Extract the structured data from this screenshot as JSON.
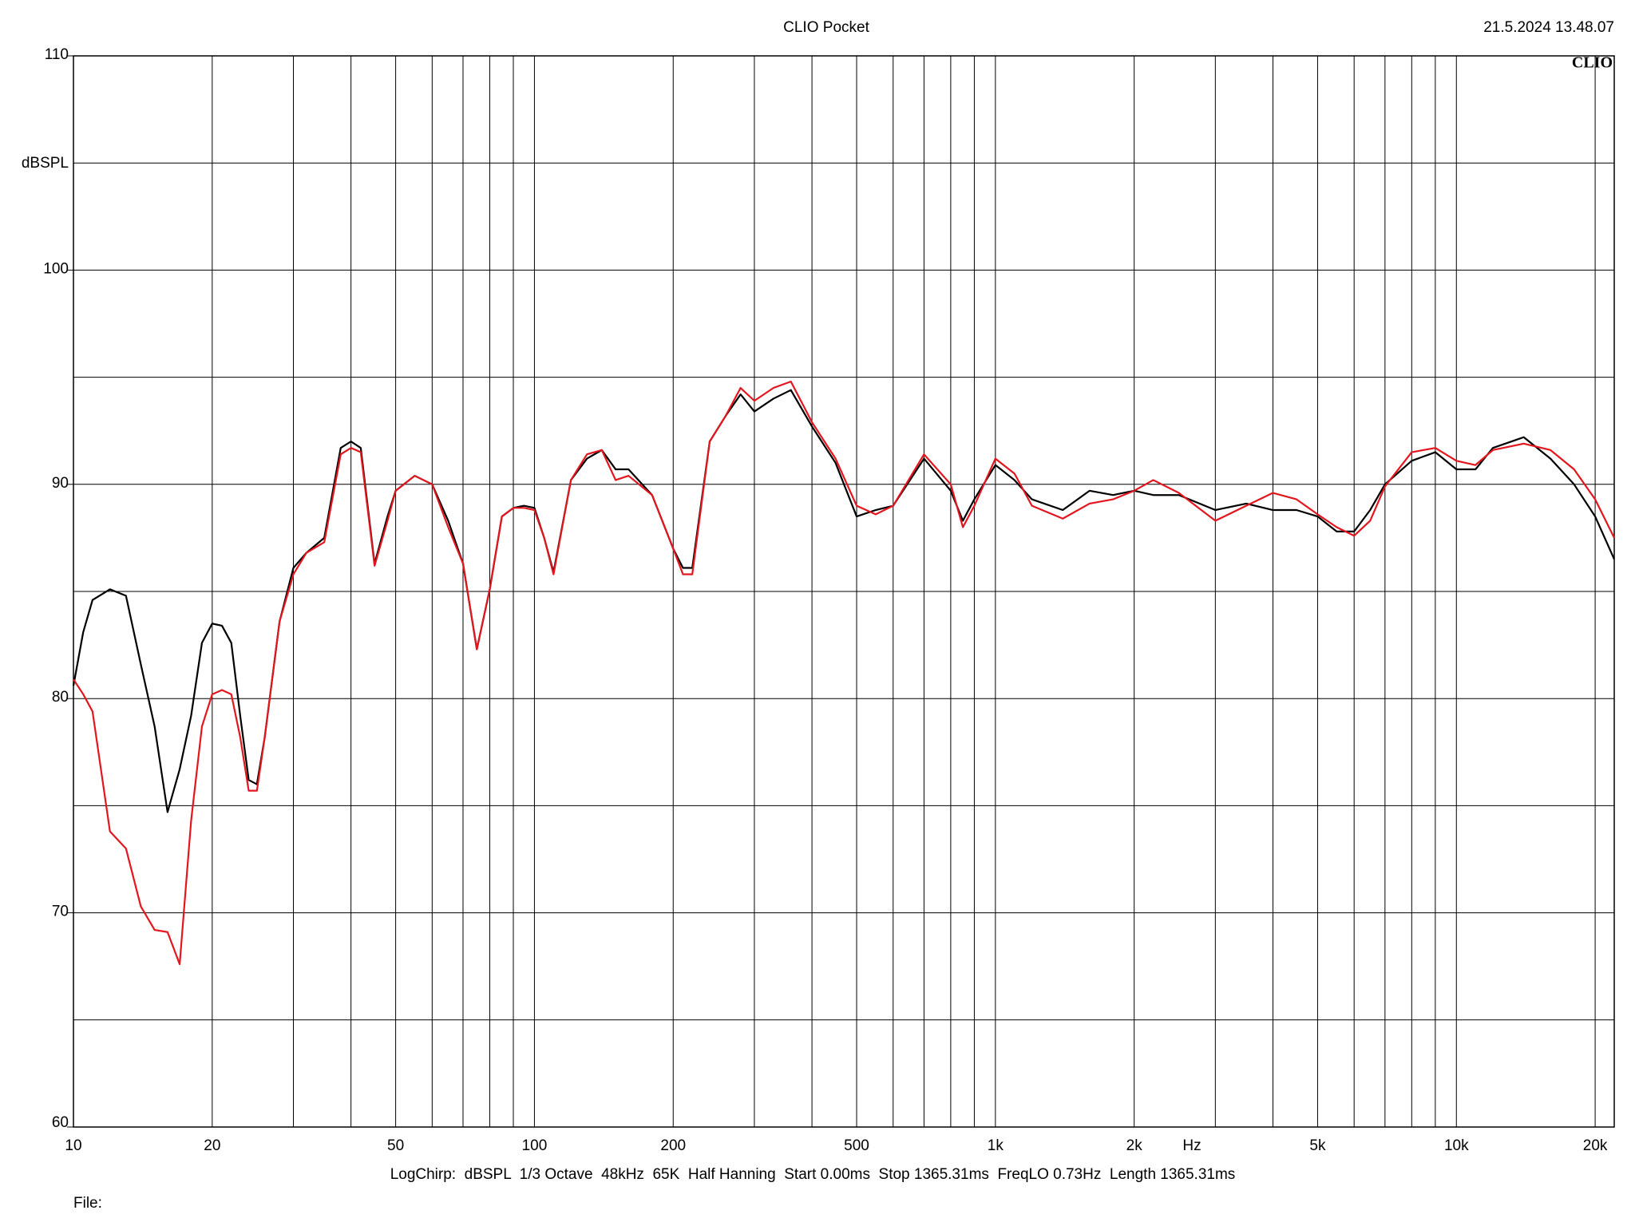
{
  "chart_data": {
    "type": "line",
    "title": "CLIO Pocket",
    "timestamp": "21.5.2024 13.48.07",
    "logo": "CLIO",
    "y_label": "dBSPL",
    "x_label": "Hz",
    "footer": "LogChirp:  dBSPL  1/3 Octave  48kHz  65K  Half Hanning  Start 0.00ms  Stop 1365.31ms  FreqLO 0.73Hz  Length 1365.31ms",
    "file_label": "File:",
    "x_log": true,
    "grid": true,
    "xlim": [
      10,
      22000
    ],
    "ylim": [
      60,
      110
    ],
    "xticks": [
      10,
      20,
      50,
      100,
      200,
      500,
      {
        "value": 1000,
        "label": "1k"
      },
      {
        "value": 2000,
        "label": "2k"
      },
      {
        "value": 5000,
        "label": "5k"
      },
      {
        "value": 10000,
        "label": "10k"
      },
      {
        "value": 20000,
        "label": "20k"
      }
    ],
    "xgrid_minor": [
      30,
      40,
      60,
      70,
      80,
      90,
      300,
      400,
      600,
      700,
      800,
      900,
      3000,
      4000,
      6000,
      7000,
      8000,
      9000
    ],
    "yticks": [
      60,
      70,
      80,
      90,
      100,
      110
    ],
    "ygrid_minor": [
      65,
      75,
      85,
      95,
      105
    ],
    "x": [
      10,
      10.5,
      11,
      12,
      13,
      14,
      15,
      16,
      17,
      18,
      19,
      20,
      21,
      22,
      23,
      24,
      25,
      26,
      28,
      30,
      32,
      35,
      38,
      40,
      42,
      45,
      48,
      50,
      55,
      60,
      65,
      70,
      75,
      80,
      85,
      90,
      95,
      100,
      105,
      110,
      120,
      130,
      140,
      150,
      160,
      180,
      200,
      210,
      220,
      240,
      260,
      280,
      300,
      330,
      360,
      400,
      450,
      500,
      550,
      600,
      700,
      800,
      850,
      900,
      1000,
      1100,
      1200,
      1400,
      1600,
      1800,
      2000,
      2200,
      2500,
      3000,
      3500,
      4000,
      4500,
      5000,
      5500,
      6000,
      6500,
      7000,
      8000,
      9000,
      10000,
      11000,
      12000,
      14000,
      16000,
      18000,
      20000,
      22000
    ],
    "series": [
      {
        "color": "#000000",
        "values": [
          80.6,
          83.1,
          84.6,
          85.1,
          84.8,
          81.6,
          78.7,
          74.7,
          76.7,
          79.2,
          82.6,
          83.5,
          83.4,
          82.6,
          79.2,
          76.2,
          76.0,
          78.2,
          83.6,
          86.1,
          86.8,
          87.5,
          91.7,
          92.0,
          91.7,
          86.3,
          88.5,
          89.7,
          90.4,
          90.0,
          88.3,
          86.3,
          82.3,
          85.1,
          88.5,
          88.9,
          89.0,
          88.9,
          87.5,
          85.9,
          90.2,
          91.2,
          91.6,
          90.7,
          90.7,
          89.5,
          87.0,
          86.1,
          86.1,
          92.0,
          93.2,
          94.2,
          93.4,
          94.0,
          94.4,
          92.7,
          91.0,
          88.5,
          88.8,
          89.0,
          91.2,
          89.7,
          88.3,
          89.3,
          90.9,
          90.2,
          89.3,
          88.8,
          89.7,
          89.5,
          89.7,
          89.5,
          89.5,
          88.8,
          89.1,
          88.8,
          88.8,
          88.5,
          87.8,
          87.8,
          88.8,
          90.0,
          91.1,
          91.5,
          90.7,
          90.7,
          91.7,
          92.2,
          91.2,
          90.0,
          88.5,
          86.5
        ]
      },
      {
        "color": "#e3161e",
        "values": [
          80.9,
          80.2,
          79.4,
          73.8,
          73.0,
          70.3,
          69.2,
          69.1,
          67.6,
          74.3,
          78.7,
          80.2,
          80.4,
          80.2,
          78.2,
          75.7,
          75.7,
          78.2,
          83.6,
          85.8,
          86.8,
          87.3,
          91.4,
          91.7,
          91.5,
          86.2,
          88.3,
          89.7,
          90.4,
          90.0,
          88.0,
          86.3,
          82.3,
          85.1,
          88.5,
          88.9,
          88.9,
          88.8,
          87.5,
          85.8,
          90.2,
          91.4,
          91.6,
          90.2,
          90.4,
          89.5,
          87.0,
          85.8,
          85.8,
          92.0,
          93.2,
          94.5,
          93.9,
          94.5,
          94.8,
          92.9,
          91.2,
          89.0,
          88.6,
          89.0,
          91.4,
          90.0,
          88.0,
          89.0,
          91.2,
          90.5,
          89.0,
          88.4,
          89.1,
          89.3,
          89.7,
          90.2,
          89.6,
          88.3,
          89.0,
          89.6,
          89.3,
          88.6,
          88.0,
          87.6,
          88.3,
          89.9,
          91.5,
          91.7,
          91.1,
          90.9,
          91.6,
          91.9,
          91.6,
          90.7,
          89.3,
          87.5
        ]
      }
    ]
  }
}
